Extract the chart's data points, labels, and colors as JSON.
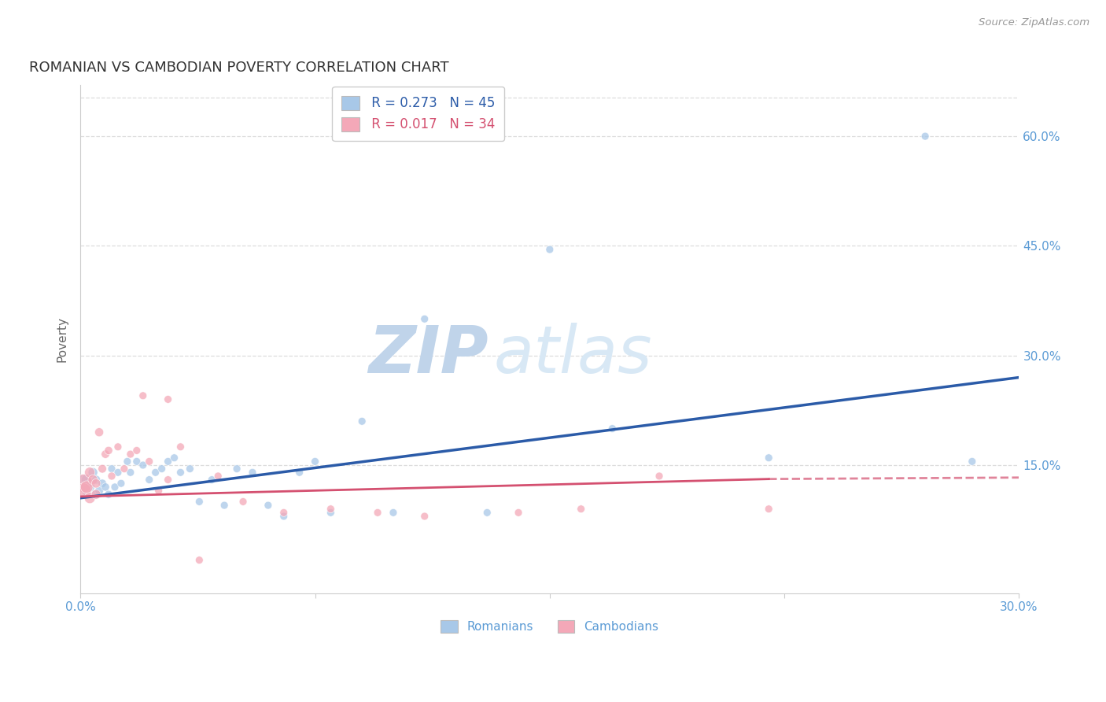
{
  "title": "ROMANIAN VS CAMBODIAN POVERTY CORRELATION CHART",
  "source": "Source: ZipAtlas.com",
  "ylabel": "Poverty",
  "right_yticks": [
    "60.0%",
    "45.0%",
    "30.0%",
    "15.0%"
  ],
  "right_ytick_vals": [
    0.6,
    0.45,
    0.3,
    0.15
  ],
  "xlim": [
    0.0,
    0.3
  ],
  "ylim": [
    -0.025,
    0.67
  ],
  "blue_color": "#A8C8E8",
  "blue_line_color": "#2B5BA8",
  "pink_color": "#F4A8B8",
  "pink_line_color": "#D45070",
  "title_color": "#333333",
  "source_color": "#999999",
  "axis_tick_color": "#5B9BD5",
  "grid_color": "#DDDDDD",
  "watermark_color": "#D8E8F5",
  "blue_line_x0": 0.0,
  "blue_line_y0": 0.105,
  "blue_line_x1": 0.3,
  "blue_line_y1": 0.27,
  "pink_line_x0": 0.0,
  "pink_line_y0": 0.107,
  "pink_line_x1_solid": 0.22,
  "pink_line_y1_solid": 0.131,
  "pink_line_x1_dash": 0.3,
  "pink_line_y1_dash": 0.133,
  "romanians_x": [
    0.001,
    0.002,
    0.002,
    0.003,
    0.004,
    0.005,
    0.005,
    0.006,
    0.007,
    0.008,
    0.009,
    0.01,
    0.011,
    0.012,
    0.013,
    0.015,
    0.016,
    0.018,
    0.02,
    0.022,
    0.024,
    0.026,
    0.028,
    0.03,
    0.032,
    0.035,
    0.038,
    0.042,
    0.046,
    0.05,
    0.055,
    0.06,
    0.065,
    0.07,
    0.075,
    0.08,
    0.09,
    0.1,
    0.11,
    0.13,
    0.15,
    0.17,
    0.22,
    0.27,
    0.285
  ],
  "romanians_y": [
    0.125,
    0.13,
    0.115,
    0.12,
    0.14,
    0.11,
    0.13,
    0.115,
    0.125,
    0.12,
    0.11,
    0.145,
    0.12,
    0.14,
    0.125,
    0.155,
    0.14,
    0.155,
    0.15,
    0.13,
    0.14,
    0.145,
    0.155,
    0.16,
    0.14,
    0.145,
    0.1,
    0.13,
    0.095,
    0.145,
    0.14,
    0.095,
    0.08,
    0.14,
    0.155,
    0.085,
    0.21,
    0.085,
    0.35,
    0.085,
    0.445,
    0.2,
    0.16,
    0.6,
    0.155
  ],
  "romanians_size": [
    250,
    100,
    90,
    80,
    75,
    70,
    65,
    60,
    58,
    55,
    52,
    50,
    50,
    50,
    50,
    50,
    50,
    50,
    50,
    50,
    50,
    50,
    50,
    50,
    50,
    50,
    50,
    50,
    50,
    50,
    50,
    50,
    50,
    50,
    50,
    50,
    50,
    50,
    50,
    50,
    50,
    50,
    50,
    50,
    50
  ],
  "cambodians_x": [
    0.001,
    0.001,
    0.002,
    0.003,
    0.003,
    0.004,
    0.005,
    0.005,
    0.006,
    0.007,
    0.008,
    0.009,
    0.01,
    0.012,
    0.014,
    0.016,
    0.018,
    0.02,
    0.022,
    0.025,
    0.028,
    0.032,
    0.038,
    0.044,
    0.052,
    0.065,
    0.08,
    0.095,
    0.11,
    0.14,
    0.16,
    0.185,
    0.22,
    0.028
  ],
  "cambodians_y": [
    0.125,
    0.115,
    0.12,
    0.105,
    0.14,
    0.13,
    0.11,
    0.125,
    0.195,
    0.145,
    0.165,
    0.17,
    0.135,
    0.175,
    0.145,
    0.165,
    0.17,
    0.245,
    0.155,
    0.115,
    0.13,
    0.175,
    0.02,
    0.135,
    0.1,
    0.085,
    0.09,
    0.085,
    0.08,
    0.085,
    0.09,
    0.135,
    0.09,
    0.24
  ],
  "cambodians_size": [
    280,
    200,
    130,
    100,
    90,
    80,
    75,
    70,
    65,
    60,
    58,
    55,
    52,
    50,
    50,
    50,
    50,
    50,
    50,
    50,
    50,
    50,
    50,
    50,
    50,
    50,
    50,
    50,
    50,
    50,
    50,
    50,
    50,
    50
  ]
}
